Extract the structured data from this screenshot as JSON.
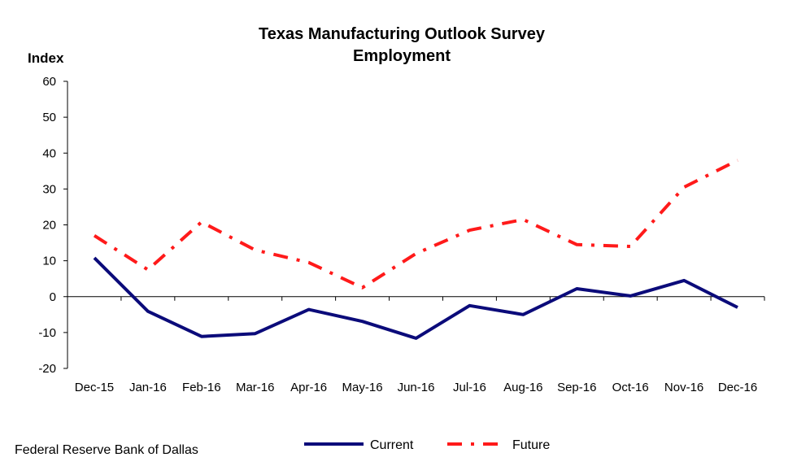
{
  "chart_data": {
    "type": "line",
    "title": "Texas Manufacturing Outlook Survey",
    "subtitle": "Employment",
    "ylabel": "Index",
    "xlabel": "",
    "ylim": [
      -20,
      60
    ],
    "yticks": [
      -20,
      -10,
      0,
      10,
      20,
      30,
      40,
      50,
      60
    ],
    "categories": [
      "Dec-15",
      "Jan-16",
      "Feb-16",
      "Mar-16",
      "Apr-16",
      "May-16",
      "Jun-16",
      "Jul-16",
      "Aug-16",
      "Sep-16",
      "Oct-16",
      "Nov-16",
      "Dec-16"
    ],
    "series": [
      {
        "name": "Current",
        "color": "#0b0b7a",
        "style": "solid",
        "values": [
          10.8,
          -4.1,
          -11.1,
          -10.3,
          -3.6,
          -6.9,
          -11.6,
          -2.5,
          -5.0,
          2.2,
          0.2,
          4.5,
          -3.0
        ]
      },
      {
        "name": "Future",
        "color": "#ff1a1a",
        "style": "dash-dot",
        "values": [
          17.0,
          7.5,
          20.8,
          13.0,
          9.5,
          2.5,
          12.0,
          18.5,
          21.5,
          14.5,
          14.0,
          30.5,
          38.0
        ]
      }
    ],
    "grid": false,
    "legend": "bottom"
  },
  "source_note": "Federal Reserve Bank of Dallas"
}
